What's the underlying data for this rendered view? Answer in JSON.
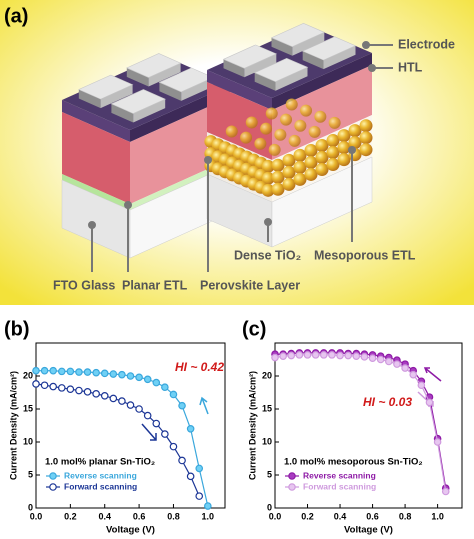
{
  "panel_labels": [
    "(a)",
    "(b)",
    "(c)"
  ],
  "diagram": {
    "labels": [
      "Electrode",
      "HTL",
      "FTO Glass",
      "Planar ETL",
      "Perovskite Layer",
      "Dense TiO₂",
      "Mesoporous ETL"
    ]
  },
  "chart_data": [
    {
      "type": "line",
      "xlabel": "Voltage (V)",
      "ylabel": "Current Density (mA/cm²)",
      "annotation": "HI ~ 0.42",
      "legend_title": "1.0 mol% planar Sn-TiO₂",
      "x": [
        0,
        0.05,
        0.1,
        0.15,
        0.2,
        0.25,
        0.3,
        0.35,
        0.4,
        0.45,
        0.5,
        0.55,
        0.6,
        0.65,
        0.7,
        0.75,
        0.8,
        0.85,
        0.9,
        0.95,
        1.0
      ],
      "series": [
        {
          "name": "Reverse scanning",
          "color": "#3aa7dc",
          "marker_facecolor": "#6fd0f5",
          "values": [
            20.8,
            20.8,
            20.8,
            20.7,
            20.7,
            20.6,
            20.6,
            20.5,
            20.4,
            20.3,
            20.2,
            20.0,
            19.8,
            19.5,
            19.0,
            18.3,
            17.2,
            15.5,
            12.0,
            6.0,
            0.3
          ]
        },
        {
          "name": "Forward scanning",
          "color": "#1c3696",
          "marker_facecolor": "#ffffff",
          "values": [
            18.8,
            18.6,
            18.4,
            18.2,
            18.0,
            17.8,
            17.6,
            17.3,
            17.0,
            16.6,
            16.2,
            15.6,
            15.0,
            14.0,
            12.8,
            11.2,
            9.3,
            7.2,
            4.8,
            1.8,
            null
          ]
        }
      ],
      "xlim": [
        0,
        1.1
      ],
      "ylim": [
        0,
        25
      ],
      "xticks": [
        {
          "value": 0,
          "label": "0.0"
        },
        0.2,
        0.4,
        0.6,
        0.8,
        {
          "value": 1,
          "label": "1.0"
        }
      ],
      "yticks": [
        0,
        5,
        10,
        15,
        20
      ]
    },
    {
      "type": "line",
      "xlabel": "Voltage (V)",
      "ylabel": "Current Density (mA/cm²)",
      "annotation": "HI ~ 0.03",
      "legend_title": "1.0 mol% mesoporous Sn-TiO₂",
      "x": [
        0,
        0.05,
        0.1,
        0.15,
        0.2,
        0.25,
        0.3,
        0.35,
        0.4,
        0.45,
        0.5,
        0.55,
        0.6,
        0.65,
        0.7,
        0.75,
        0.8,
        0.85,
        0.9,
        0.95,
        1.0,
        1.05,
        1.1
      ],
      "series": [
        {
          "name": "Reverse scanning",
          "color": "#8e1aa6",
          "marker_facecolor": "#a83cc0",
          "values": [
            23.3,
            23.3,
            23.4,
            23.5,
            23.5,
            23.5,
            23.5,
            23.5,
            23.5,
            23.4,
            23.4,
            23.3,
            23.2,
            23.0,
            22.8,
            22.4,
            21.8,
            20.8,
            19.2,
            16.8,
            10.5,
            3.0,
            null
          ]
        },
        {
          "name": "Forward scanning",
          "color": "#cf9ade",
          "marker_facecolor": "#e7c6f0",
          "values": [
            22.8,
            23.0,
            23.1,
            23.2,
            23.2,
            23.2,
            23.2,
            23.2,
            23.1,
            23.1,
            23.0,
            22.9,
            22.7,
            22.5,
            22.2,
            21.8,
            21.2,
            20.2,
            18.6,
            16.0,
            10.0,
            2.5,
            null
          ]
        }
      ],
      "xlim": [
        0,
        1.15
      ],
      "ylim": [
        0,
        25
      ],
      "xticks": [
        {
          "value": 0,
          "label": "0.0"
        },
        0.2,
        0.4,
        0.6,
        0.8,
        {
          "value": 1,
          "label": "1.0"
        }
      ],
      "yticks": [
        0,
        5,
        10,
        15,
        20
      ]
    }
  ]
}
